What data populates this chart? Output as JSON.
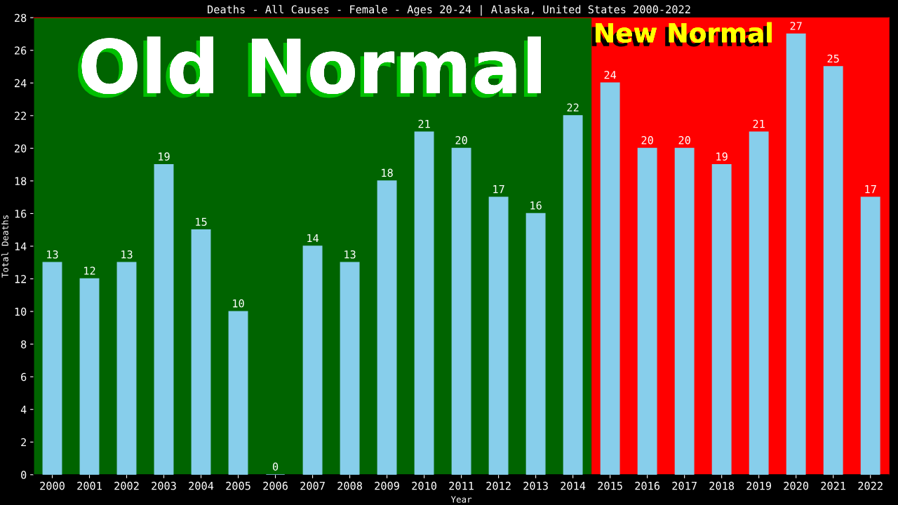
{
  "chart_data": {
    "type": "bar",
    "title": "Deaths - All Causes - Female - Ages 20-24 | Alaska, United States 2000-2022",
    "xlabel": "Year",
    "ylabel": "Total Deaths",
    "x": [
      2000,
      2001,
      2002,
      2003,
      2004,
      2005,
      2006,
      2007,
      2008,
      2009,
      2010,
      2011,
      2012,
      2013,
      2014,
      2015,
      2016,
      2017,
      2018,
      2019,
      2020,
      2021,
      2022
    ],
    "values": [
      13,
      12,
      13,
      19,
      15,
      10,
      0,
      14,
      13,
      18,
      21,
      20,
      17,
      16,
      22,
      24,
      20,
      20,
      19,
      21,
      27,
      25,
      17
    ],
    "color": "#87ceeb",
    "xlim": [
      1999.5,
      2022.5
    ],
    "xticks": [
      2000,
      2001,
      2002,
      2003,
      2004,
      2005,
      2006,
      2007,
      2008,
      2009,
      2010,
      2011,
      2012,
      2013,
      2014,
      2015,
      2016,
      2017,
      2018,
      2019,
      2020,
      2021,
      2022
    ],
    "ylim": [
      0,
      28
    ],
    "yticks": [
      0,
      2,
      4,
      6,
      8,
      10,
      12,
      14,
      16,
      18,
      20,
      22,
      24,
      26,
      28
    ],
    "bands": [
      {
        "axis": "x",
        "from": 1999.5,
        "to": 2014.5,
        "label": "Old Normal",
        "color": "#006400"
      },
      {
        "axis": "x",
        "from": 2014.5,
        "to": 2022.5,
        "label": "New Normal",
        "color": "#ff0000"
      }
    ],
    "data_labels": true,
    "grid": false,
    "legend": false
  }
}
